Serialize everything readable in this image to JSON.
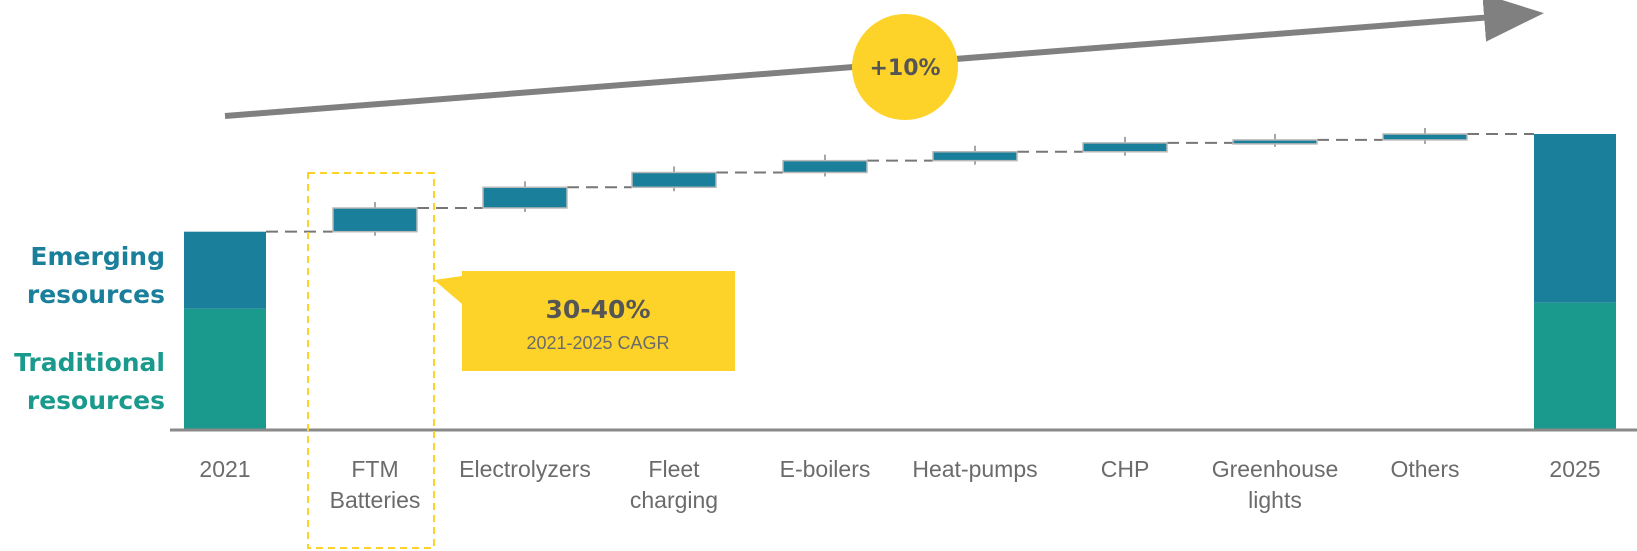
{
  "chart_data": {
    "type": "waterfall",
    "categories": [
      "2021",
      "FTM|Batteries",
      "Electrolyzers",
      "Fleet|charging",
      "E-boilers",
      "Heat-pumps",
      "CHP",
      "Greenhouse|lights",
      "Others",
      "2025"
    ],
    "ylim": [
      0,
      100
    ],
    "start": {
      "category": "2021",
      "traditional": 41,
      "emerging": 26,
      "total": 67
    },
    "increments": [
      {
        "category": "FTM Batteries",
        "value": 8
      },
      {
        "category": "Electrolyzers",
        "value": 7
      },
      {
        "category": "Fleet charging",
        "value": 5
      },
      {
        "category": "E-boilers",
        "value": 4
      },
      {
        "category": "Heat-pumps",
        "value": 3
      },
      {
        "category": "CHP",
        "value": 3
      },
      {
        "category": "Greenhouse lights",
        "value": 1
      },
      {
        "category": "Others",
        "value": 2
      }
    ],
    "end": {
      "category": "2025",
      "traditional": 43,
      "emerging": 57,
      "total": 100
    },
    "legend": [
      {
        "label": "Emerging|resources",
        "color": "#1a7f9a"
      },
      {
        "label": "Traditional|resources",
        "color": "#1a9a8c"
      }
    ],
    "growth_badge": "+10%",
    "highlight": {
      "category": "FTM Batteries",
      "value": "30-40%",
      "caption": "2021-2025 CAGR"
    },
    "grid": false
  },
  "colors": {
    "emerging": "#1a7f9a",
    "traditional": "#1a9a8c",
    "increment": "#1a7f9a",
    "accent_yellow": "#fdd32a",
    "arrow": "#808080",
    "axis": "#8a8a8a",
    "connector": "#777777"
  }
}
